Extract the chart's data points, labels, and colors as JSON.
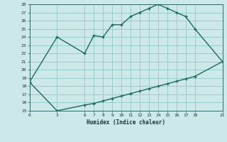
{
  "xlabel": "Humidex (Indice chaleur)",
  "bg_color": "#cce8e8",
  "grid_color": "#99cccc",
  "line_color": "#1a6b5a",
  "upper_x": [
    0,
    3,
    6,
    7,
    8,
    9,
    10,
    11,
    12,
    13,
    14,
    15,
    16,
    17,
    18,
    21
  ],
  "upper_y": [
    18.5,
    24.0,
    22.0,
    24.2,
    24.0,
    25.5,
    25.5,
    26.5,
    27.0,
    27.5,
    28.0,
    27.5,
    27.0,
    26.5,
    25.0,
    21.0
  ],
  "lower_x": [
    0,
    3,
    6,
    7,
    8,
    9,
    10,
    11,
    12,
    13,
    14,
    15,
    16,
    17,
    18,
    21
  ],
  "lower_y": [
    18.5,
    15.0,
    15.7,
    15.9,
    16.2,
    16.5,
    16.8,
    17.1,
    17.4,
    17.7,
    18.0,
    18.3,
    18.6,
    18.9,
    19.2,
    21.0
  ],
  "xlim": [
    0,
    21
  ],
  "ylim": [
    15,
    28
  ],
  "xticks": [
    0,
    3,
    6,
    7,
    8,
    9,
    10,
    11,
    12,
    13,
    14,
    15,
    16,
    17,
    18,
    21
  ],
  "yticks": [
    15,
    16,
    17,
    18,
    19,
    20,
    21,
    22,
    23,
    24,
    25,
    26,
    27,
    28
  ]
}
